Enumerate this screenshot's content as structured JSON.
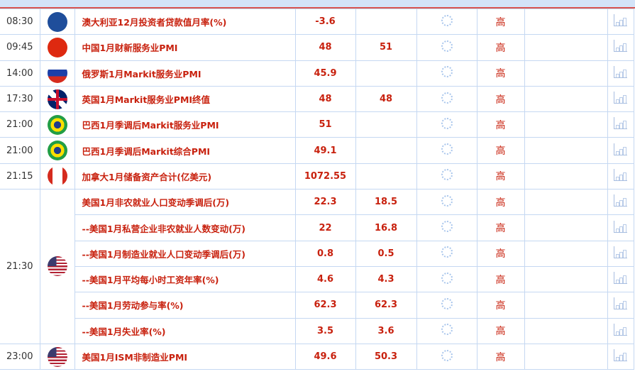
{
  "rows": [
    {
      "time": "08:30",
      "country": "australia",
      "name": "澳大利亚12月投资者贷款值月率(%)",
      "prev": "-3.6",
      "forecast": "",
      "importance": "高"
    },
    {
      "time": "09:45",
      "country": "china",
      "name": "中国1月财新服务业PMI",
      "prev": "48",
      "forecast": "51",
      "importance": "高"
    },
    {
      "time": "14:00",
      "country": "russia",
      "name": "俄罗斯1月Markit服务业PMI",
      "prev": "45.9",
      "forecast": "",
      "importance": "高"
    },
    {
      "time": "17:30",
      "country": "uk",
      "name": "英国1月Markit服务业PMI终值",
      "prev": "48",
      "forecast": "48",
      "importance": "高"
    },
    {
      "time": "21:00",
      "country": "brazil",
      "name": "巴西1月季调后Markit服务业PMI",
      "prev": "51",
      "forecast": "",
      "importance": "高"
    },
    {
      "time": "21:00",
      "country": "brazil",
      "name": "巴西1月季调后Markit综合PMI",
      "prev": "49.1",
      "forecast": "",
      "importance": "高"
    },
    {
      "time": "21:15",
      "country": "canada",
      "name": "加拿大1月储备资产合计(亿美元)",
      "prev": "1072.55",
      "forecast": "",
      "importance": "高"
    },
    {
      "time": "21:30",
      "country": "usa",
      "name": "美国1月非农就业人口变动季调后(万)",
      "prev": "22.3",
      "forecast": "18.5",
      "importance": "高"
    },
    {
      "time": "",
      "country": "",
      "name": "--美国1月私营企业非农就业人数变动(万)",
      "prev": "22",
      "forecast": "16.8",
      "importance": "高"
    },
    {
      "time": "",
      "country": "",
      "name": "--美国1月制造业就业人口变动季调后(万)",
      "prev": "0.8",
      "forecast": "0.5",
      "importance": "高"
    },
    {
      "time": "",
      "country": "",
      "name": "--美国1月平均每小时工资年率(%)",
      "prev": "4.6",
      "forecast": "4.3",
      "importance": "高"
    },
    {
      "time": "",
      "country": "",
      "name": "--美国1月劳动参与率(%)",
      "prev": "62.3",
      "forecast": "62.3",
      "importance": "高"
    },
    {
      "time": "",
      "country": "",
      "name": "--美国1月失业率(%)",
      "prev": "3.5",
      "forecast": "3.6",
      "importance": "高"
    },
    {
      "time": "23:00",
      "country": "usa",
      "name": "美国1月ISM非制造业PMI",
      "prev": "49.6",
      "forecast": "50.3",
      "importance": "高"
    }
  ],
  "colors": {
    "accent": "#d9534f",
    "text_red": "#c8210e",
    "border": "#c5d8f2"
  }
}
